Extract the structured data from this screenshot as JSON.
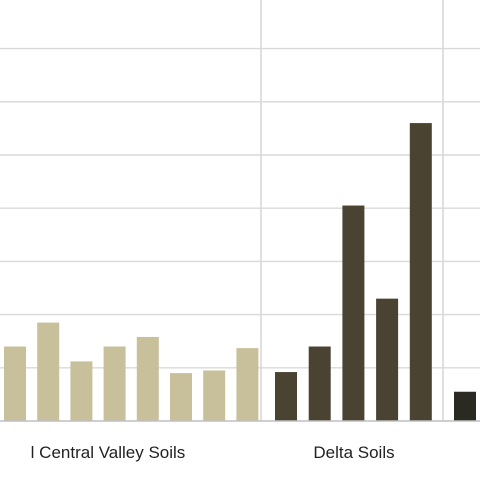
{
  "chart_data": {
    "type": "bar",
    "title": "",
    "xlabel": "",
    "ylabel": "",
    "ylim": [
      0,
      7.5
    ],
    "grid": true,
    "groups": [
      {
        "label": "l Central Valley Soils",
        "color": "#c8c09b",
        "values": [
          1.4,
          1.85,
          1.12,
          1.4,
          1.58,
          0.9,
          0.95,
          1.37
        ]
      },
      {
        "label": "Delta Soils",
        "color": "#4a4332",
        "values": [
          0.92,
          1.4,
          4.05,
          2.3,
          5.6
        ]
      },
      {
        "label": "",
        "color": "#2a2a22",
        "values": [
          0.55
        ]
      }
    ]
  }
}
